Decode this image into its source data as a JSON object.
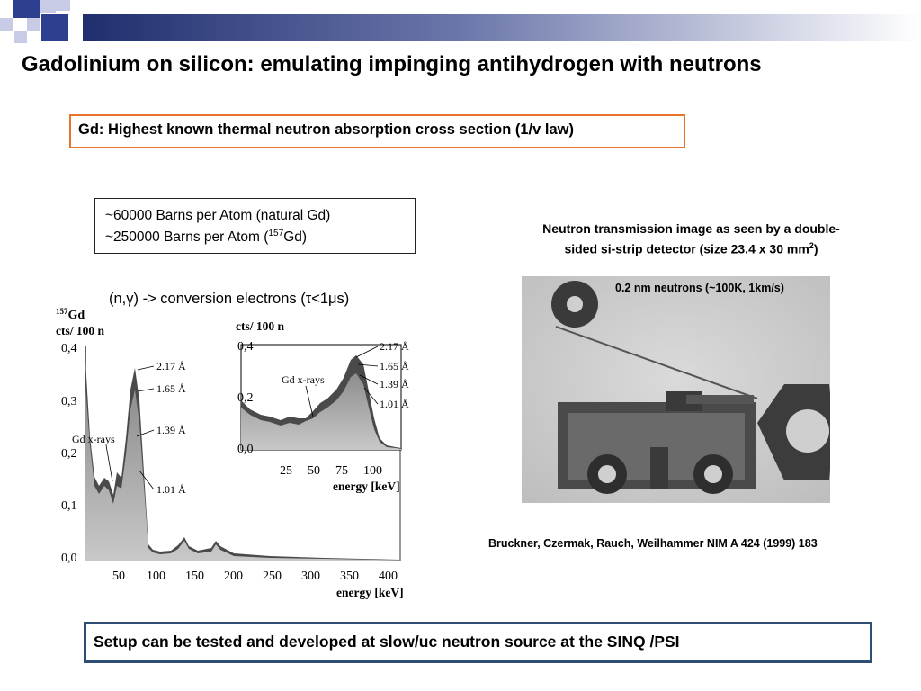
{
  "colors": {
    "accent_square": "#2e3f8f",
    "light_square": "#c7cbe6",
    "header_gradient_start": "#1f2e6e",
    "orange_border": "#e8732a",
    "bottom_border": "#2e4e73"
  },
  "title": "Gadolinium on silicon: emulating impinging antihydrogen with neutrons",
  "highlight_box": "Gd: Highest known thermal neutron absorption cross section (1/v law)",
  "barns": {
    "line1": "~60000  Barns per Atom (natural Gd)",
    "line2_prefix": "~250000  Barns per Atom (",
    "line2_sup": "157",
    "line2_suffix": "Gd)"
  },
  "conversion": "(n,γ) -> conversion electrons (τ<1μs)",
  "left_plot": {
    "isotope": "157Gd",
    "ylabel": "cts/ 100 n",
    "yticks": [
      "0,4",
      "0,3",
      "0,2",
      "0,1",
      "0,0"
    ],
    "xticks": [
      "50",
      "100",
      "150",
      "200",
      "250",
      "300",
      "350",
      "400"
    ],
    "xlabel": "energy  [keV]",
    "annotations": [
      "2.17 Å",
      "1.65 Å",
      "1.39 Å",
      "1.01 Å",
      "Gd x-rays"
    ]
  },
  "inset_plot": {
    "ylabel": "cts/ 100 n",
    "yticks": [
      "0,4",
      "0,2",
      "0,0"
    ],
    "xticks": [
      "25",
      "50",
      "75",
      "100"
    ],
    "xlabel": "energy  [keV]",
    "annotations": [
      "2.17 Å",
      "1.65 Å",
      "1.39 Å",
      "1.01 Å",
      "Gd x-rays"
    ]
  },
  "neutron_image": {
    "caption_line1": "Neutron transmission image as seen by a double-",
    "caption_line2_prefix": "sided si-strip detector      (size 23.4 x 30 mm",
    "caption_line2_sup": "2",
    "caption_line2_suffix": ")",
    "label": "0.2 nm neutrons (~100K, 1km/s)"
  },
  "reference": "Bruckner, Czermak, Rauch, Weilhammer  NIM A 424 (1999) 183",
  "bottom_box": "Setup can be tested and developed at slow/uc neutron source at the SINQ /PSI"
}
